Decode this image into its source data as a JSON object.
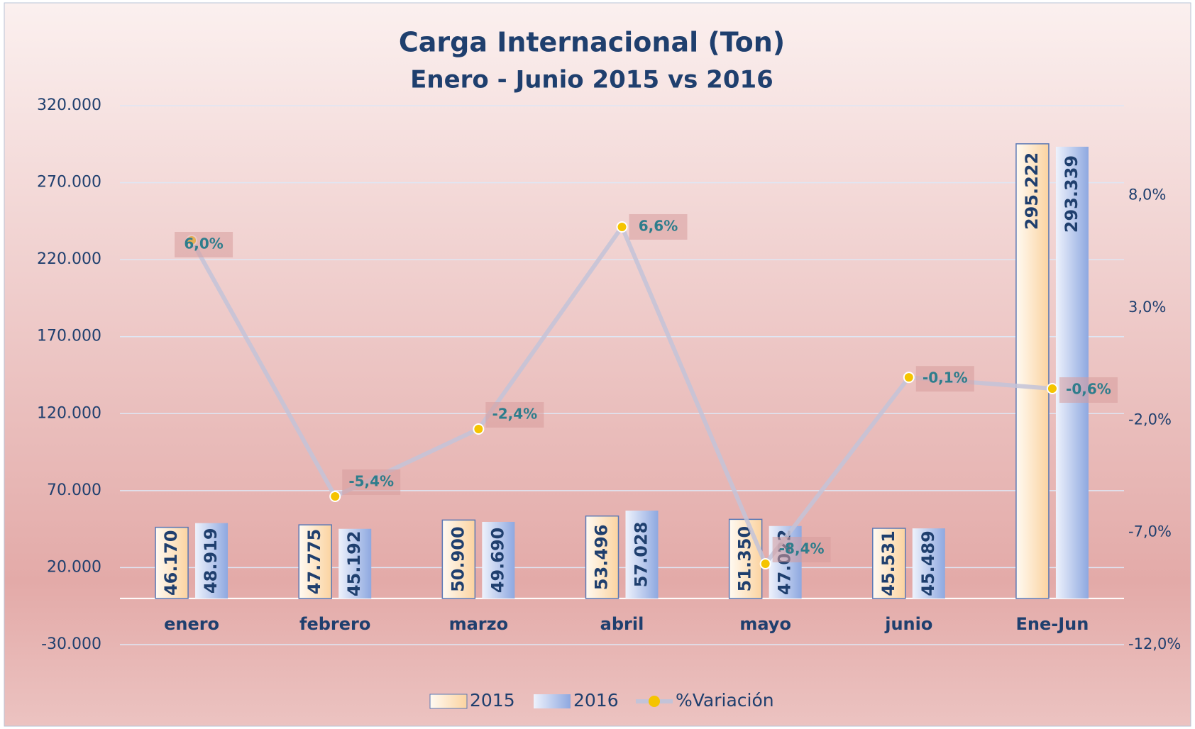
{
  "chart_data": {
    "type": "bar",
    "title": "Carga Internacional (Ton)",
    "subtitle": "Enero - Junio 2015 vs 2016",
    "categories": [
      "enero",
      "febrero",
      "marzo",
      "abril",
      "mayo",
      "junio",
      "Ene-Jun"
    ],
    "series": [
      {
        "name": "2015",
        "color": "#fbd9b0",
        "values": [
          46170,
          47775,
          50900,
          53496,
          51350,
          45531,
          295222
        ],
        "value_labels": [
          "46.170",
          "47.775",
          "50.900",
          "53.496",
          "51.350",
          "45.531",
          "295.222"
        ]
      },
      {
        "name": "2016",
        "color": "#9fb6e6",
        "values": [
          48919,
          45192,
          49690,
          57028,
          47022,
          45489,
          293339
        ],
        "value_labels": [
          "48.919",
          "45.192",
          "49.690",
          "57.028",
          "47.022",
          "45.489",
          "293.339"
        ]
      },
      {
        "name": "%Variación",
        "type": "line",
        "axis": "y2",
        "color": "#c3c3d8",
        "marker_color": "#f5c400",
        "values": [
          6.0,
          -5.4,
          -2.4,
          6.6,
          -8.4,
          -0.1,
          -0.6
        ],
        "value_labels": [
          "6,0%",
          "-5,4%",
          "-2,4%",
          "6,6%",
          "-8,4%",
          "-0,1%",
          "-0,6%"
        ]
      }
    ],
    "ylim": [
      -30000,
      320000
    ],
    "yticks": [
      {
        "value": -30000,
        "label": "-30.000"
      },
      {
        "value": 20000,
        "label": "20.000"
      },
      {
        "value": 70000,
        "label": "70.000"
      },
      {
        "value": 120000,
        "label": "120.000"
      },
      {
        "value": 170000,
        "label": "170.000"
      },
      {
        "value": 220000,
        "label": "220.000"
      },
      {
        "value": 270000,
        "label": "270.000"
      },
      {
        "value": 320000,
        "label": "320.000"
      }
    ],
    "y2lim": [
      -12,
      12
    ],
    "y2ticks": [
      {
        "value": -12,
        "label": "-12,0%"
      },
      {
        "value": -7,
        "label": "-7,0%"
      },
      {
        "value": -2,
        "label": "-2,0%"
      },
      {
        "value": 3,
        "label": "3,0%"
      },
      {
        "value": 8,
        "label": "8,0%"
      }
    ],
    "grid": true,
    "legend": "bottom"
  }
}
